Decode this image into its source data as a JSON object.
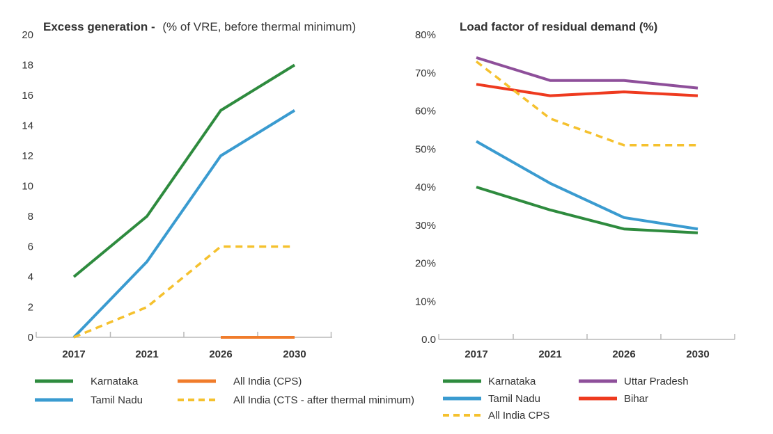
{
  "chart_data": [
    {
      "type": "line",
      "title": "Excess generation -",
      "subtitle": "(% of VRE, before thermal minimum)",
      "xlabel": "",
      "ylabel": "",
      "categories": [
        "2017",
        "2021",
        "2026",
        "2030"
      ],
      "ylim": [
        0,
        20
      ],
      "yticks": [
        "0",
        "2",
        "4",
        "6",
        "8",
        "10",
        "12",
        "14",
        "16",
        "18",
        "20"
      ],
      "grid": false,
      "legend_position": "bottom",
      "series": [
        {
          "name": "Karnataka",
          "color": "#2e8b3e",
          "dash": false,
          "values": [
            4,
            8,
            15,
            18
          ]
        },
        {
          "name": "Tamil Nadu",
          "color": "#3a9bd0",
          "dash": false,
          "values": [
            0,
            5,
            12,
            15
          ]
        },
        {
          "name": "All India (CPS)",
          "color": "#f07c2b",
          "dash": false,
          "values": [
            null,
            null,
            0,
            0
          ]
        },
        {
          "name": "All India (CTS - after thermal minimum)",
          "color": "#f5c12e",
          "dash": true,
          "values": [
            0,
            2,
            6,
            6
          ]
        }
      ]
    },
    {
      "type": "line",
      "title": "Load factor of residual demand (%)",
      "subtitle": "",
      "xlabel": "",
      "ylabel": "",
      "categories": [
        "2017",
        "2021",
        "2026",
        "2030"
      ],
      "ylim": [
        0,
        80
      ],
      "yticks": [
        "0.0",
        "10%",
        "20%",
        "30%",
        "40%",
        "50%",
        "60%",
        "70%",
        "80%"
      ],
      "grid": false,
      "legend_position": "bottom",
      "series": [
        {
          "name": "Karnataka",
          "color": "#2e8b3e",
          "dash": false,
          "values": [
            40,
            34,
            29,
            28
          ]
        },
        {
          "name": "Tamil Nadu",
          "color": "#3a9bd0",
          "dash": false,
          "values": [
            52,
            41,
            32,
            29
          ]
        },
        {
          "name": "Uttar Pradesh",
          "color": "#8e4f9a",
          "dash": false,
          "values": [
            74,
            68,
            68,
            66
          ]
        },
        {
          "name": "Bihar",
          "color": "#ee3a1f",
          "dash": false,
          "values": [
            67,
            64,
            65,
            64
          ]
        },
        {
          "name": "All India CPS",
          "color": "#f5c12e",
          "dash": true,
          "values": [
            73,
            58,
            51,
            51
          ]
        }
      ]
    }
  ]
}
